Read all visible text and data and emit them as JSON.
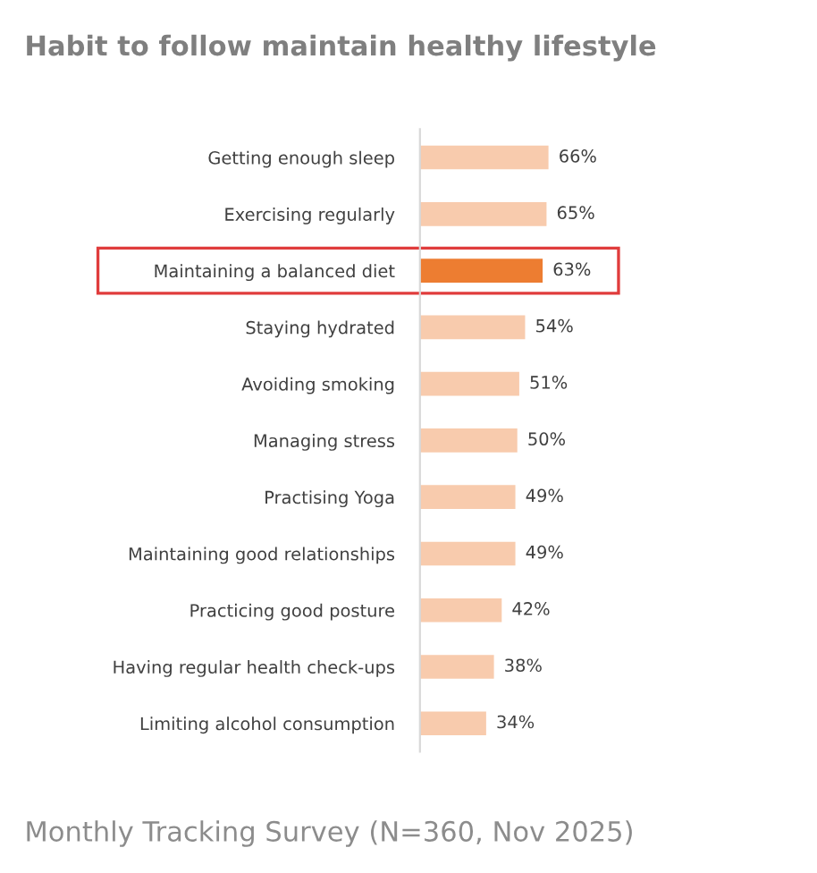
{
  "chart_data": {
    "type": "bar",
    "orientation": "horizontal",
    "title": "Habit to follow maintain healthy lifestyle",
    "categories": [
      "Getting enough sleep",
      "Exercising regularly",
      "Maintaining a balanced diet",
      "Staying hydrated",
      "Avoiding smoking",
      "Managing stress",
      "Practising Yoga",
      "Maintaining good relationships",
      "Practicing good posture",
      "Having regular health check-ups",
      "Limiting alcohol consumption"
    ],
    "values": [
      66,
      65,
      63,
      54,
      51,
      50,
      49,
      49,
      42,
      38,
      34
    ],
    "value_labels": [
      "66%",
      "65%",
      "63%",
      "54%",
      "51%",
      "50%",
      "49%",
      "49%",
      "42%",
      "38%",
      "34%"
    ],
    "colors": [
      "#f8cbad",
      "#f8cbad",
      "#ed7d31",
      "#f8cbad",
      "#f8cbad",
      "#f8cbad",
      "#f8cbad",
      "#f8cbad",
      "#f8cbad",
      "#f8cbad",
      "#f8cbad"
    ],
    "annotations": [
      "Monthly Tracking Survey (N=360, Nov 2025)"
    ],
    "grid": false,
    "legend": false
  }
}
